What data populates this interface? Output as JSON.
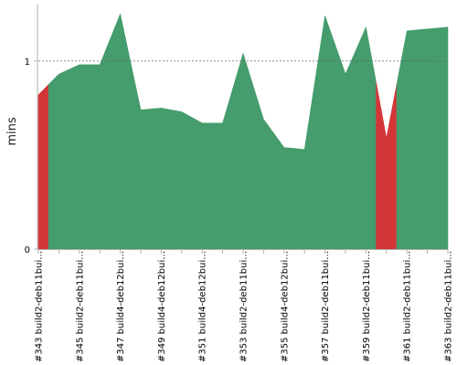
{
  "chart_data": {
    "type": "area",
    "ylabel": "mins",
    "ylim": [
      0,
      1.3
    ],
    "yticks": [
      0,
      1
    ],
    "reference_line": 1,
    "grid": false,
    "legend": "none",
    "x": [
      343,
      344,
      345,
      346,
      347,
      348,
      349,
      350,
      351,
      352,
      353,
      354,
      355,
      356,
      357,
      358,
      359,
      360,
      361,
      362,
      363
    ],
    "values": [
      0.82,
      0.93,
      0.98,
      0.98,
      1.25,
      0.74,
      0.75,
      0.73,
      0.67,
      0.67,
      1.04,
      0.69,
      0.54,
      0.53,
      1.24,
      0.93,
      1.18,
      0.59,
      1.16,
      1.17,
      1.18
    ],
    "status": [
      "failed",
      "success",
      "success",
      "success",
      "success",
      "success",
      "success",
      "success",
      "success",
      "success",
      "success",
      "success",
      "success",
      "success",
      "success",
      "success",
      "success",
      "failed",
      "success",
      "success",
      "success"
    ],
    "tick_labels": [
      "#343 build2-deb11bui…",
      "#345 build2-deb11bui…",
      "#347 build4-deb12bui…",
      "#349 build4-deb12bui…",
      "#351 build4-deb12bui…",
      "#353 build2-deb11bui…",
      "#355 build4-deb12bui…",
      "#357 build2-deb11bui…",
      "#359 build2-deb11bui…",
      "#361 build2-deb11bui…",
      "#363 build2-deb11bui…"
    ],
    "colors": {
      "success": "#459c6c",
      "failed": "#d33639",
      "axis": "#b0b0b0",
      "reference": "#666666"
    }
  }
}
